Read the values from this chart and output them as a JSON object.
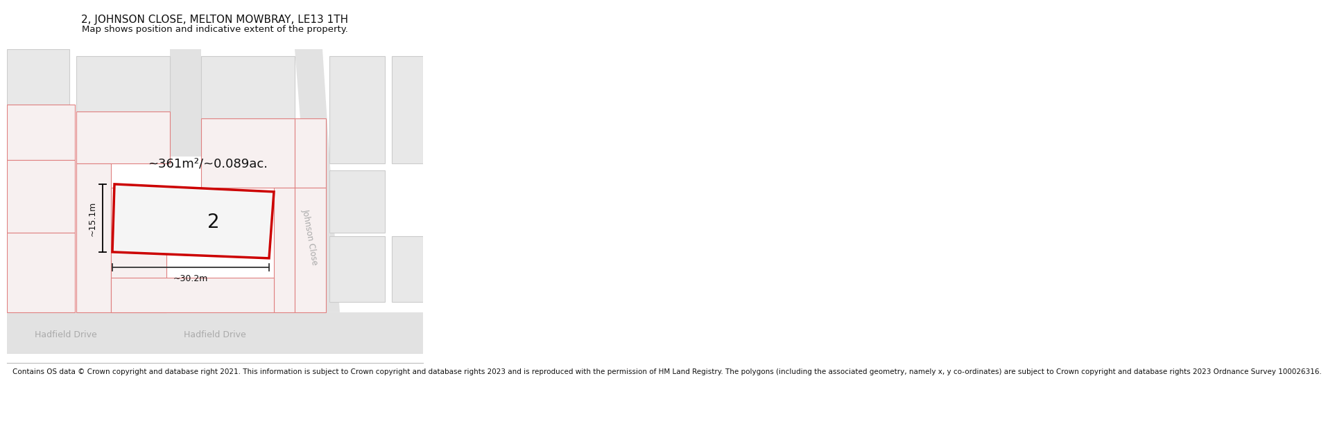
{
  "title": "2, JOHNSON CLOSE, MELTON MOWBRAY, LE13 1TH",
  "subtitle": "Map shows position and indicative extent of the property.",
  "footer": "Contains OS data © Crown copyright and database right 2021. This information is subject to Crown copyright and database rights 2023 and is reproduced with the permission of HM Land Registry. The polygons (including the associated geometry, namely x, y co-ordinates) are subject to Crown copyright and database rights 2023 Ordnance Survey 100026316.",
  "area_text": "~361m²/~0.089ac.",
  "number_label": "2",
  "width_label": "~30.2m",
  "height_label": "~15.1m",
  "johnson_close_label": "Johnson Close",
  "hadfield_drive_label1": "Hadfield Drive",
  "hadfield_drive_label2": "Hadfield Drive",
  "title_fontsize": 11,
  "subtitle_fontsize": 9.5,
  "footer_fontsize": 7.5,
  "white": "#ffffff",
  "building_fill": "#e8e8e8",
  "building_edge": "#cccccc",
  "road_fill": "#e2e2e2",
  "plot_fill": "#f7f0f0",
  "plot_edge": "#e08080",
  "highlight_fill": "#f5f5f5",
  "highlight_edge": "#cc0000",
  "street_color": "#aaaaaa",
  "dim_color": "#333333",
  "text_color": "#111111"
}
